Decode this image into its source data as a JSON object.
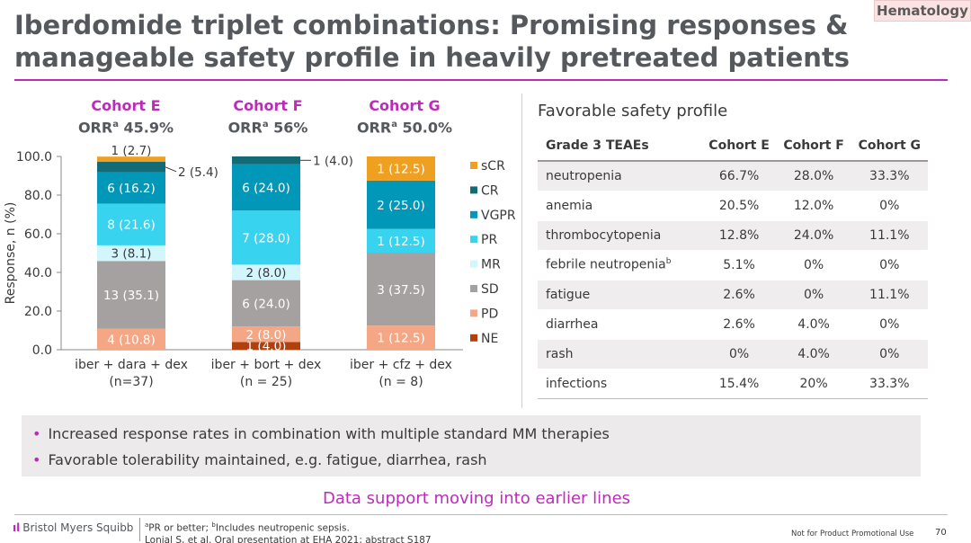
{
  "tag": "Hematology",
  "title_line1": "Iberdomide triplet combinations: Promising responses &",
  "title_line2": "manageable safety profile in heavily pretreated patients",
  "cohorts": [
    {
      "name": "Cohort E",
      "orr_label": "ORR",
      "orr_sup": "a",
      "orr_value": " 45.9%"
    },
    {
      "name": "Cohort F",
      "orr_label": "ORR",
      "orr_sup": "a",
      "orr_value": " 56%"
    },
    {
      "name": "Cohort G",
      "orr_label": "ORR",
      "orr_sup": "a",
      "orr_value": " 50.0%"
    }
  ],
  "chart_data": {
    "type": "bar",
    "stacked": true,
    "ylabel": "Response, n (%)",
    "ylim": [
      0,
      100
    ],
    "yticks": [
      "0.0",
      "20.0",
      "40.0",
      "60.0",
      "80.0",
      "100.0"
    ],
    "categories": [
      {
        "line1": "iber + dara + dex",
        "line2": "(n=37)"
      },
      {
        "line1": "iber + bort + dex",
        "line2": "(n = 25)"
      },
      {
        "line1": "iber + cfz + dex",
        "line2": "(n = 8)"
      }
    ],
    "series": [
      {
        "name": "NE",
        "color": "#b0410e",
        "values": [
          0,
          4.0,
          0
        ],
        "labels": [
          "",
          "1 (4.0)",
          ""
        ]
      },
      {
        "name": "PD",
        "color": "#f5a785",
        "values": [
          10.8,
          8.0,
          12.5
        ],
        "labels": [
          "4 (10.8)",
          "2 (8.0)",
          "1 (12.5)"
        ]
      },
      {
        "name": "SD",
        "color": "#a6a1a1",
        "values": [
          35.1,
          24.0,
          37.5
        ],
        "labels": [
          "13 (35.1)",
          "6 (24.0)",
          "3 (37.5)"
        ]
      },
      {
        "name": "MR",
        "color": "#d3f6fc",
        "values": [
          8.1,
          8.0,
          0
        ],
        "labels": [
          "3 (8.1)",
          "2 (8.0)",
          ""
        ]
      },
      {
        "name": "PR",
        "color": "#38d3ef",
        "values": [
          21.6,
          28.0,
          12.5
        ],
        "labels": [
          "8 (21.6)",
          "7 (28.0)",
          "1 (12.5)"
        ]
      },
      {
        "name": "VGPR",
        "color": "#0097b8",
        "values": [
          16.2,
          24.0,
          25.0
        ],
        "labels": [
          "6 (16.2)",
          "6 (24.0)",
          "2 (25.0)"
        ]
      },
      {
        "name": "CR",
        "color": "#136b75",
        "values": [
          5.4,
          4.0,
          0
        ],
        "labels": [
          "2 (5.4)",
          "1 (4.0)",
          ""
        ]
      },
      {
        "name": "sCR",
        "color": "#f0a020",
        "values": [
          2.7,
          0,
          12.5
        ],
        "labels": [
          "1 (2.7)",
          "",
          "1 (12.5)"
        ]
      }
    ],
    "legend": [
      "sCR",
      "CR",
      "VGPR",
      "PR",
      "MR",
      "SD",
      "PD",
      "NE"
    ]
  },
  "safety": {
    "title": "Favorable safety profile",
    "headers": [
      "Grade 3 TEAEs",
      "Cohort E",
      "Cohort F",
      "Cohort G"
    ],
    "rows": [
      {
        "name": "neutropenia",
        "sup": "",
        "e": "66.7%",
        "f": "28.0%",
        "g": "33.3%"
      },
      {
        "name": "anemia",
        "sup": "",
        "e": "20.5%",
        "f": "12.0%",
        "g": "0%"
      },
      {
        "name": "thrombocytopenia",
        "sup": "",
        "e": "12.8%",
        "f": "24.0%",
        "g": "11.1%"
      },
      {
        "name": "febrile neutropenia",
        "sup": "b",
        "e": "5.1%",
        "f": "0%",
        "g": "0%"
      },
      {
        "name": "fatigue",
        "sup": "",
        "e": "2.6%",
        "f": "0%",
        "g": "11.1%"
      },
      {
        "name": "diarrhea",
        "sup": "",
        "e": "2.6%",
        "f": "4.0%",
        "g": "0%"
      },
      {
        "name": "rash",
        "sup": "",
        "e": "0%",
        "f": "4.0%",
        "g": "0%"
      },
      {
        "name": "infections",
        "sup": "",
        "e": "15.4%",
        "f": "20%",
        "g": "33.3%"
      }
    ]
  },
  "bullets": [
    "Increased response rates in combination with multiple standard MM therapies",
    "Favorable tolerability maintained, e.g. fatigue, diarrhea, rash"
  ],
  "conclusion": "Data support moving into earlier lines",
  "logo_text": "Bristol Myers Squibb",
  "footnote_a_sup": "a",
  "footnote_a": "PR or better; ",
  "footnote_b_sup": "b",
  "footnote_b": "Includes neutropenic sepsis.",
  "footnote_ref": "Lonial S, et al. Oral presentation at EHA 2021; abstract S187",
  "promo": "Not for Product Promotional Use",
  "page_number": "70"
}
